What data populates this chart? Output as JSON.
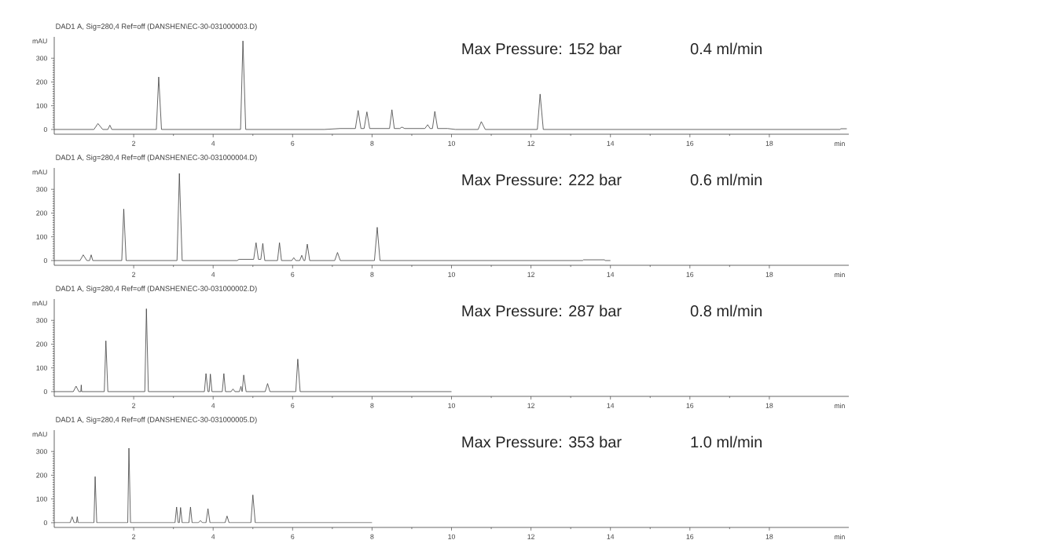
{
  "chart_data": [
    {
      "type": "line",
      "title": "DAD1 A, Sig=280,4 Ref=off (DANSHEN\\EC-30-031000003.D)",
      "xlabel": "min",
      "ylabel": "mAU",
      "color": "#404040",
      "marker": "none",
      "xlim": [
        0,
        20
      ],
      "ylim": [
        -20,
        390
      ],
      "xticks": [
        2,
        4,
        6,
        8,
        10,
        12,
        14,
        16,
        18
      ],
      "yticks": [
        0,
        100,
        200,
        300
      ],
      "annotations": [
        "Max Pressure: 152 bar",
        "0.4 ml/min"
      ],
      "x": [
        0,
        1.0,
        1.1,
        1.22,
        1.35,
        1.4,
        1.45,
        2.57,
        2.63,
        2.7,
        4.69,
        4.75,
        4.82,
        6.8,
        7.2,
        7.58,
        7.65,
        7.72,
        7.8,
        7.87,
        7.94,
        8.44,
        8.5,
        8.56,
        8.7,
        8.75,
        8.82,
        9.33,
        9.4,
        9.46,
        9.52,
        9.58,
        9.65,
        9.9,
        10.1,
        10.67,
        10.75,
        10.85,
        12.16,
        12.23,
        12.31,
        19.78,
        19.8,
        19.95
      ],
      "values": [
        0,
        0,
        25,
        0,
        0,
        18,
        0,
        0,
        221,
        0,
        0,
        373,
        0,
        0,
        4,
        4,
        80,
        4,
        4,
        74,
        4,
        4,
        83,
        4,
        4,
        10,
        4,
        4,
        20,
        4,
        4,
        76,
        4,
        4,
        0,
        0,
        33,
        0,
        0,
        149,
        0,
        0,
        3,
        3
      ]
    },
    {
      "type": "line",
      "title": "DAD1 A, Sig=280,4 Ref=off (DANSHEN\\EC-30-031000004.D)",
      "xlabel": "min",
      "ylabel": "mAU",
      "color": "#404040",
      "marker": "none",
      "xlim": [
        0,
        20
      ],
      "ylim": [
        -20,
        390
      ],
      "xticks": [
        2,
        4,
        6,
        8,
        10,
        12,
        14,
        16,
        18
      ],
      "yticks": [
        0,
        100,
        200,
        300
      ],
      "annotations": [
        "Max Pressure: 222 bar",
        "0.6 ml/min"
      ],
      "x": [
        0,
        0.65,
        0.73,
        0.82,
        0.89,
        0.93,
        0.97,
        1.7,
        1.75,
        1.81,
        3.09,
        3.15,
        3.22,
        4.6,
        4.65,
        5.02,
        5.08,
        5.14,
        5.2,
        5.25,
        5.3,
        5.62,
        5.67,
        5.72,
        5.98,
        6.03,
        6.08,
        6.18,
        6.23,
        6.28,
        6.31,
        6.37,
        6.43,
        7.06,
        7.13,
        7.2,
        8.06,
        8.13,
        8.2,
        13.3,
        13.32,
        13.85,
        13.87,
        14
      ],
      "values": [
        0,
        0,
        24,
        0,
        0,
        24,
        0,
        0,
        217,
        0,
        0,
        367,
        0,
        0,
        5,
        5,
        75,
        5,
        5,
        72,
        0,
        0,
        75,
        0,
        0,
        12,
        0,
        0,
        22,
        0,
        0,
        69,
        0,
        0,
        34,
        0,
        0,
        140,
        0,
        0,
        3,
        3,
        0,
        0
      ]
    },
    {
      "type": "line",
      "title": "DAD1 A, Sig=280,4 Ref=off (DANSHEN\\EC-30-031000002.D)",
      "xlabel": "min",
      "ylabel": "mAU",
      "color": "#404040",
      "marker": "none",
      "xlim": [
        0,
        20
      ],
      "ylim": [
        -20,
        390
      ],
      "xticks": [
        2,
        4,
        6,
        8,
        10,
        12,
        14,
        16,
        18
      ],
      "yticks": [
        0,
        100,
        200,
        300
      ],
      "annotations": [
        "Max Pressure: 287 bar",
        "0.8 ml/min"
      ],
      "x": [
        0,
        0.48,
        0.55,
        0.62,
        0.67,
        0.68,
        0.69,
        1.26,
        1.3,
        1.35,
        2.28,
        2.32,
        2.37,
        3.78,
        3.82,
        3.87,
        3.9,
        3.93,
        3.97,
        4.23,
        4.27,
        4.31,
        4.45,
        4.5,
        4.55,
        4.66,
        4.7,
        4.73,
        4.77,
        4.83,
        5.31,
        5.37,
        5.43,
        6.08,
        6.13,
        6.19,
        10
      ],
      "values": [
        0,
        0,
        23,
        0,
        0,
        28,
        0,
        0,
        214,
        0,
        0,
        349,
        0,
        0,
        76,
        0,
        0,
        74,
        0,
        0,
        76,
        0,
        0,
        11,
        0,
        0,
        22,
        0,
        70,
        0,
        0,
        34,
        0,
        0,
        137,
        0,
        0
      ]
    },
    {
      "type": "line",
      "title": "DAD1 A, Sig=280,4 Ref=off (DANSHEN\\EC-30-031000005.D)",
      "xlabel": "min",
      "ylabel": "mAU",
      "color": "#404040",
      "marker": "none",
      "xlim": [
        0,
        20
      ],
      "ylim": [
        -20,
        390
      ],
      "xticks": [
        2,
        4,
        6,
        8,
        10,
        12,
        14,
        16,
        18
      ],
      "yticks": [
        0,
        100,
        200,
        300
      ],
      "annotations": [
        "Max Pressure: 353 bar",
        "1.0 ml/min"
      ],
      "x": [
        0,
        0.4,
        0.45,
        0.5,
        0.56,
        0.58,
        0.6,
        1.0,
        1.03,
        1.07,
        1.85,
        1.88,
        1.92,
        3.04,
        3.08,
        3.12,
        3.15,
        3.18,
        3.22,
        3.39,
        3.43,
        3.47,
        3.63,
        3.68,
        3.73,
        3.82,
        3.87,
        3.92,
        4.3,
        4.35,
        4.4,
        4.95,
        5.0,
        5.06,
        8
      ],
      "values": [
        0,
        0,
        25,
        0,
        0,
        25,
        0,
        0,
        194,
        0,
        0,
        314,
        0,
        0,
        66,
        0,
        0,
        64,
        0,
        0,
        66,
        0,
        0,
        9,
        0,
        0,
        59,
        0,
        0,
        28,
        0,
        0,
        117,
        0,
        0
      ]
    }
  ]
}
